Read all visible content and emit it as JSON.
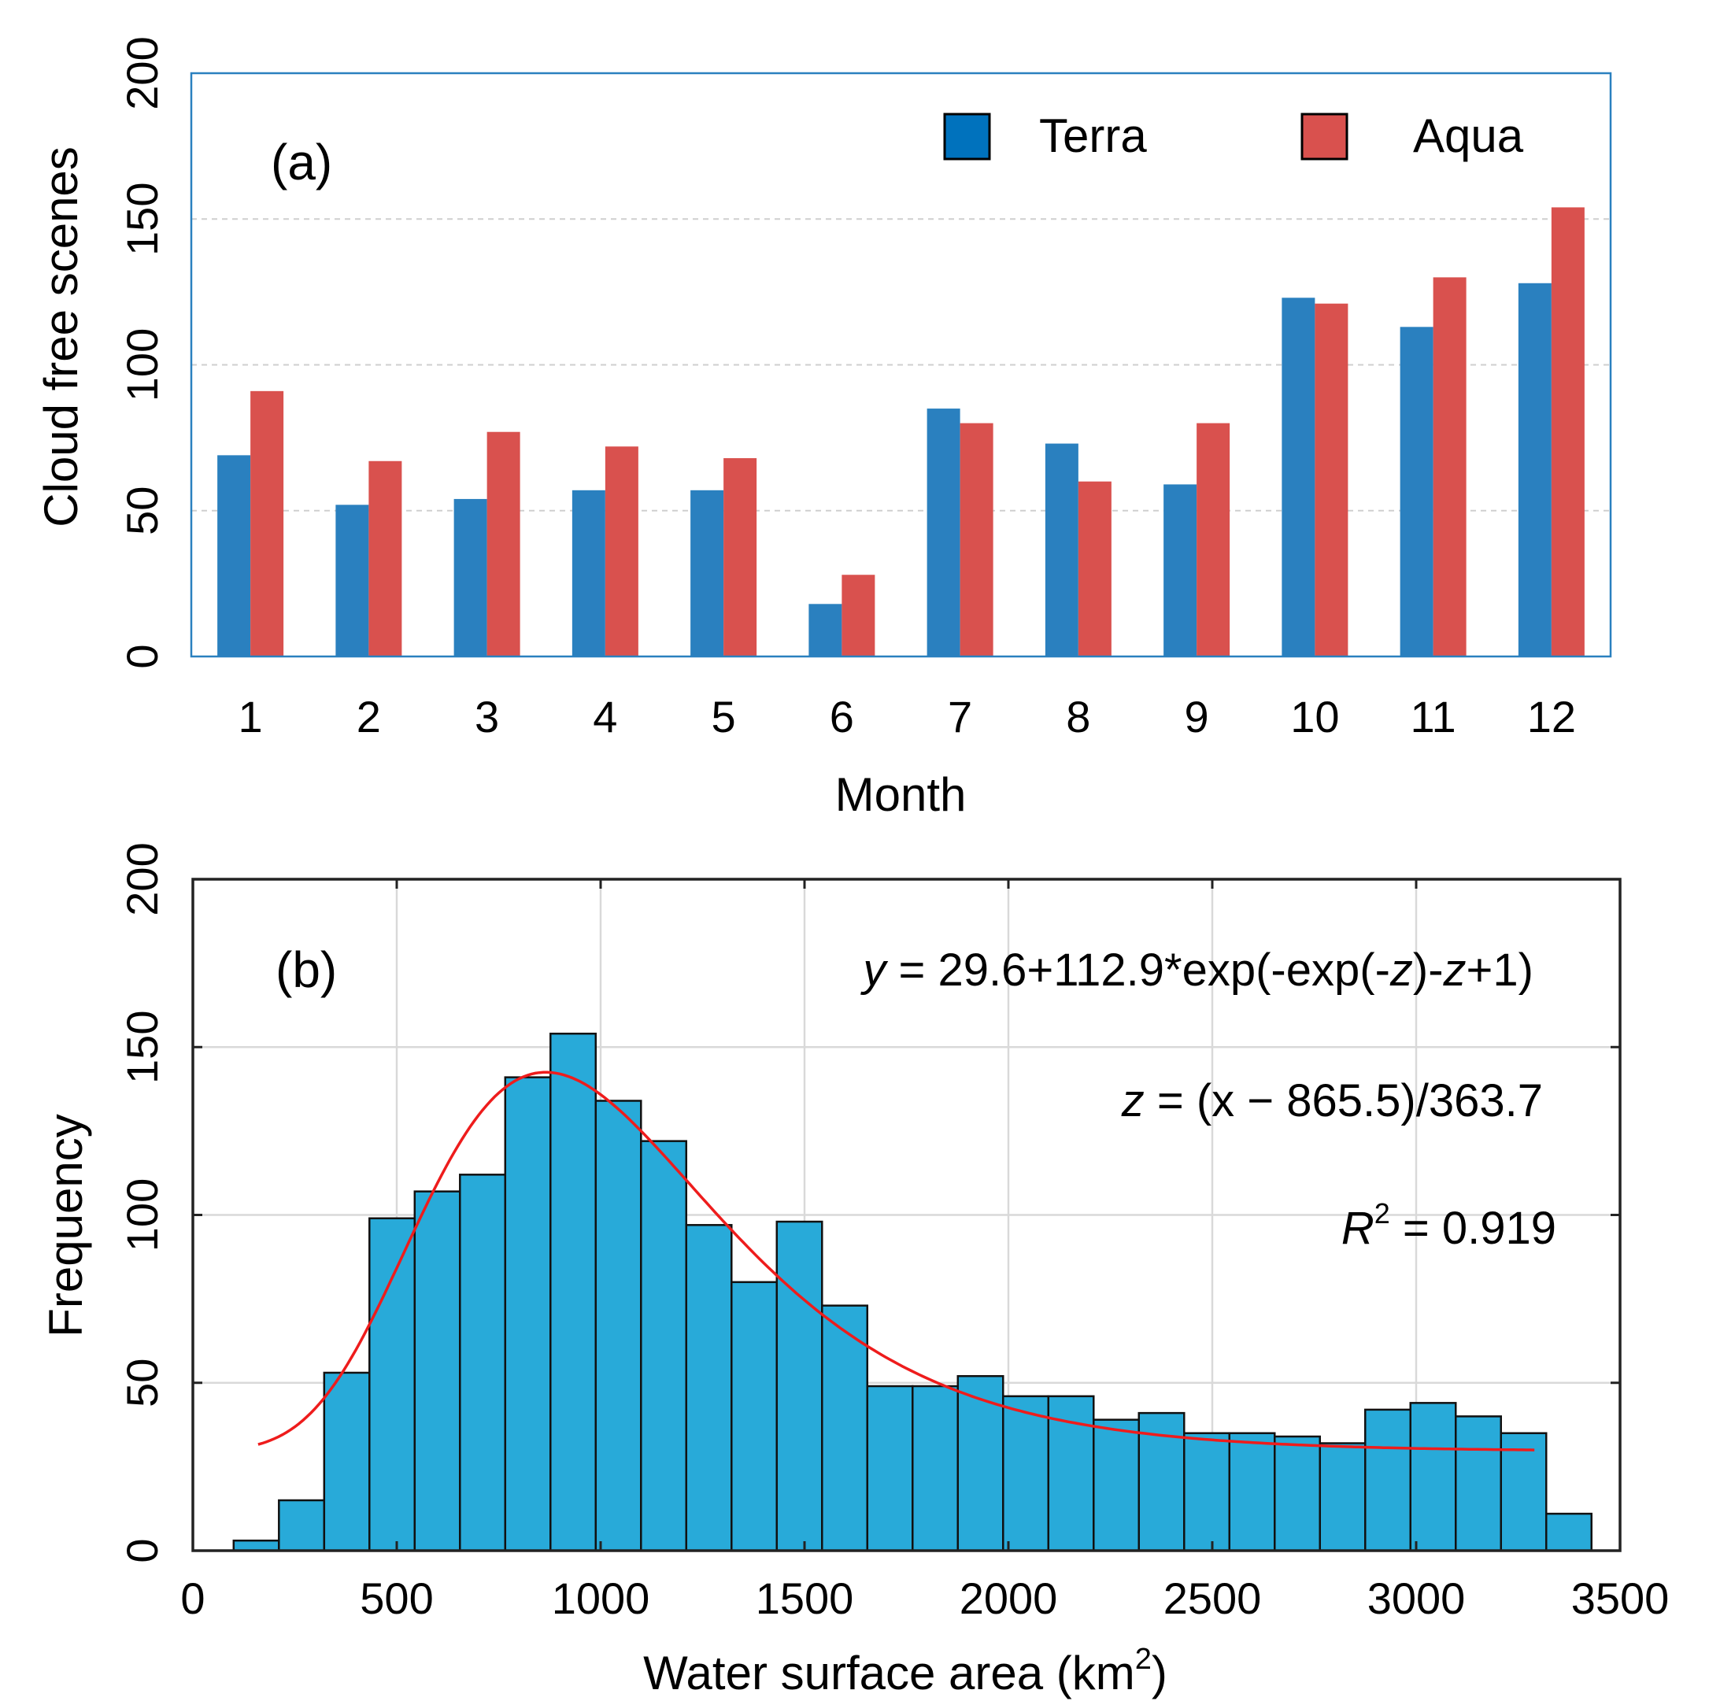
{
  "chart_data": [
    {
      "type": "bar",
      "panel_label": "(a)",
      "xlabel": "Month",
      "ylabel": "Cloud free scenes",
      "ylim": [
        0,
        200
      ],
      "yticks": [
        "0",
        "50",
        "100",
        "150",
        "200"
      ],
      "categories": [
        "1",
        "2",
        "3",
        "4",
        "5",
        "6",
        "7",
        "8",
        "9",
        "10",
        "11",
        "12"
      ],
      "grid": "horizontal dashed",
      "legend_position": "top-right",
      "series": [
        {
          "name": "Terra",
          "color": "#2a80bf",
          "legend_color": "#0072bd",
          "values": [
            69,
            52,
            54,
            57,
            57,
            18,
            85,
            73,
            59,
            123,
            113,
            128
          ]
        },
        {
          "name": "Aqua",
          "color": "#d9514e",
          "legend_color": "#d9514e",
          "values": [
            91,
            67,
            77,
            72,
            68,
            28,
            80,
            60,
            80,
            121,
            130,
            154
          ]
        }
      ]
    },
    {
      "type": "histogram",
      "panel_label": "(b)",
      "xlabel": "Water surface area (km",
      "xlabel_sup": "2",
      "xlabel_end": ")",
      "ylabel": "Frequency",
      "xlim": [
        0,
        3500
      ],
      "ylim": [
        0,
        200
      ],
      "xticks": [
        "0",
        "500",
        "1000",
        "1500",
        "2000",
        "2500",
        "3000",
        "3500"
      ],
      "yticks": [
        "0",
        "50",
        "100",
        "150",
        "200"
      ],
      "grid": "on",
      "bar_color": "#28aad9",
      "bin_start": 100,
      "bin_width": 111,
      "counts": [
        3,
        15,
        53,
        99,
        107,
        112,
        141,
        154,
        134,
        122,
        97,
        80,
        98,
        73,
        49,
        49,
        52,
        46,
        46,
        39,
        41,
        35,
        35,
        34,
        32,
        42,
        44,
        40,
        35,
        11
      ],
      "fit": {
        "name": "fit",
        "color": "#ee1c1c",
        "a": 29.6,
        "b": 112.9,
        "mu": 865.5,
        "sigma": 363.7,
        "x_range": [
          160,
          3290
        ]
      },
      "annotations": {
        "eq1_y": "y",
        "eq1_rest": " = 29.6+112.9*exp(-exp(-",
        "eq1_z1": "z",
        "eq1_mid": ")-",
        "eq1_z2": "z",
        "eq1_end": "+1)",
        "eq2_z": "z",
        "eq2_rest": " = (x − 865.5)/363.7",
        "r2_r": "R",
        "r2_sup": "2",
        "r2_rest": " = 0.919"
      }
    }
  ]
}
